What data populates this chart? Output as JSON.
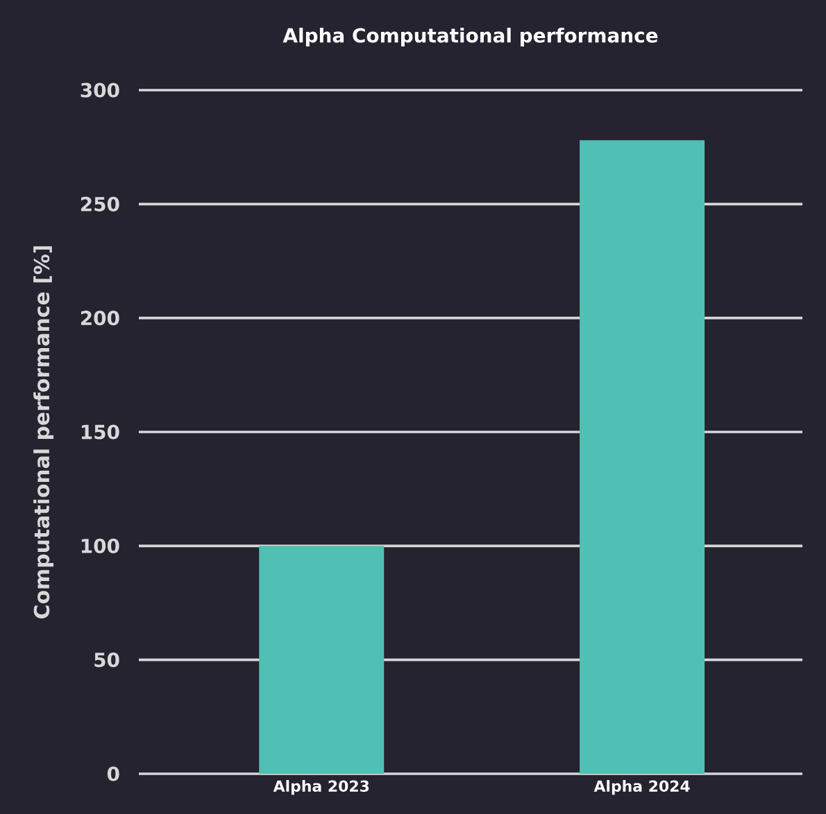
{
  "chart_data": {
    "type": "bar",
    "title": "Alpha Computational performance",
    "ylabel": "Computational performance [%]",
    "categories": [
      "Alpha 2023",
      "Alpha 2024"
    ],
    "values": [
      100,
      278
    ],
    "color": "#4fc0b3",
    "ylim": [
      0,
      300
    ],
    "yticks": [
      0,
      50,
      100,
      150,
      200,
      250,
      300
    ],
    "grid": "y"
  }
}
